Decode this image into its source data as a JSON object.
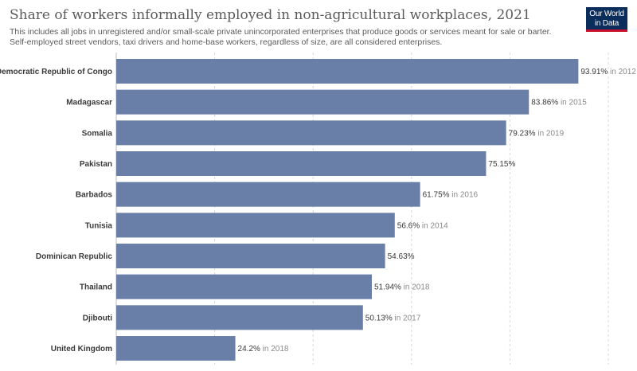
{
  "header": {
    "title": "Share of workers informally employed in non-agricultural workplaces, 2021",
    "subtitle": "This includes all jobs in unregistered and/or small-scale private unincorporated enterprises that produce goods or services meant for sale or barter. Self-employed street vendors, taxi drivers and home-base workers, regardless of size, are all considered enterprises."
  },
  "logo": {
    "line1": "Our World",
    "line2": "in Data"
  },
  "colors": {
    "bar": "#6a7fa8",
    "title": "#5b5b5b",
    "logo_bg": "#0b2d5b",
    "logo_accent": "#c8102e"
  },
  "chart_data": {
    "type": "bar",
    "orientation": "horizontal",
    "xlim": [
      0,
      100
    ],
    "grid": true,
    "categories": [
      "Democratic Republic of Congo",
      "Madagascar",
      "Somalia",
      "Pakistan",
      "Barbados",
      "Tunisia",
      "Dominican Republic",
      "Thailand",
      "Djibouti",
      "United Kingdom"
    ],
    "values": [
      93.91,
      83.86,
      79.23,
      75.15,
      61.75,
      56.6,
      54.63,
      51.94,
      50.13,
      24.2
    ],
    "value_labels": [
      "93.91%",
      "83.86%",
      "79.23%",
      "75.15%",
      "61.75%",
      "56.6%",
      "54.63%",
      "51.94%",
      "50.13%",
      "24.2%"
    ],
    "year_notes": [
      "in 2012",
      "in 2015",
      "in 2019",
      "",
      "in 2016",
      "in 2014",
      "",
      "in 2018",
      "in 2017",
      "in 2018"
    ]
  }
}
